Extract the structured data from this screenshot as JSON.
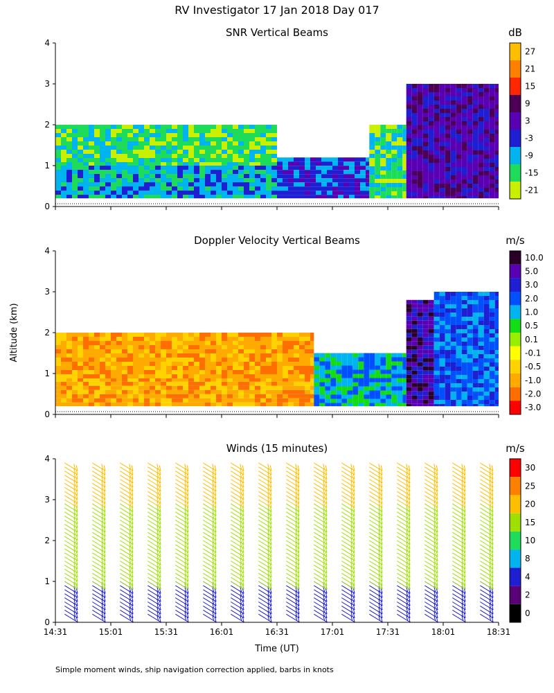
{
  "figure": {
    "title": "RV Investigator  17 Jan 2018 Day 017",
    "ylabel": "Altitude (km)",
    "xlabel": "Time (UT)",
    "footnote": "Simple moment winds, ship navigation correction applied, barbs in knots"
  },
  "chart_data": [
    {
      "type": "heatmap",
      "title": "SNR Vertical Beams",
      "units": "dB",
      "x_ticks": [
        "14:31",
        "15:01",
        "15:31",
        "16:01",
        "16:31",
        "17:01",
        "17:31",
        "18:01",
        "18:31"
      ],
      "y_ticks": [
        "0",
        "1",
        "2",
        "3",
        "4"
      ],
      "ylim": [
        0,
        4
      ],
      "xlim": [
        "14:31",
        "18:31"
      ],
      "colorbar_labels": [
        "27",
        "21",
        "15",
        "9",
        "3",
        "-3",
        "-9",
        "-15",
        "-21"
      ],
      "colorbar_colors": [
        "#ffbf00",
        "#ff7f00",
        "#ff2600",
        "#4b0055",
        "#5a00b4",
        "#1e1ed2",
        "#00b4f0",
        "#1edc5a",
        "#c8f000"
      ],
      "regions": [
        {
          "time_range": [
            "14:31",
            "16:31"
          ],
          "altitude_range": [
            0.2,
            1.0
          ],
          "snr_db_approx": -9
        },
        {
          "time_range": [
            "14:31",
            "16:31"
          ],
          "altitude_range": [
            1.0,
            2.0
          ],
          "snr_db_approx": -18
        },
        {
          "time_range": [
            "16:31",
            "17:21"
          ],
          "altitude_range": [
            0.2,
            1.2
          ],
          "snr_db_approx": -3
        },
        {
          "time_range": [
            "17:21",
            "17:41"
          ],
          "altitude_range": [
            0.2,
            2.0
          ],
          "snr_db_approx": -18
        },
        {
          "time_range": [
            "17:41",
            "18:31"
          ],
          "altitude_range": [
            0.2,
            3.0
          ],
          "snr_db_approx": 3
        }
      ]
    },
    {
      "type": "heatmap",
      "title": "Doppler Velocity Vertical Beams",
      "units": "m/s",
      "x_ticks": [
        "14:31",
        "15:01",
        "15:31",
        "16:01",
        "16:31",
        "17:01",
        "17:31",
        "18:01",
        "18:31"
      ],
      "y_ticks": [
        "0",
        "1",
        "2",
        "3",
        "4"
      ],
      "ylim": [
        0,
        4
      ],
      "xlim": [
        "14:31",
        "18:31"
      ],
      "colorbar_labels": [
        "10.0",
        "5.0",
        "3.0",
        "2.0",
        "1.0",
        "0.5",
        "0.1",
        "-0.1",
        "-0.5",
        "-1.0",
        "-2.0",
        "-3.0"
      ],
      "colorbar_colors": [
        "#280028",
        "#5a00b4",
        "#1e1ed2",
        "#0050ff",
        "#00b4f0",
        "#14dc14",
        "#96f000",
        "#ffff00",
        "#ffd200",
        "#ffaa00",
        "#ff6e00",
        "#ff0000"
      ],
      "regions": [
        {
          "time_range": [
            "14:31",
            "16:51"
          ],
          "altitude_range": [
            0.2,
            0.8
          ],
          "velocity_ms_approx": -1.5
        },
        {
          "time_range": [
            "14:31",
            "16:51"
          ],
          "altitude_range": [
            0.8,
            2.0
          ],
          "velocity_ms_approx": -0.8
        },
        {
          "time_range": [
            "16:51",
            "17:41"
          ],
          "altitude_range": [
            0.2,
            1.5
          ],
          "velocity_ms_approx": 1.0
        },
        {
          "time_range": [
            "17:41",
            "17:56"
          ],
          "altitude_range": [
            0.2,
            2.8
          ],
          "velocity_ms_approx": 4.0
        },
        {
          "time_range": [
            "17:56",
            "18:31"
          ],
          "altitude_range": [
            0.2,
            3.0
          ],
          "velocity_ms_approx": 1.5
        }
      ]
    },
    {
      "type": "scatter",
      "title": "Winds (15 minutes)",
      "units": "m/s",
      "x_ticks": [
        "14:31",
        "15:01",
        "15:31",
        "16:01",
        "16:31",
        "17:01",
        "17:31",
        "18:01",
        "18:31"
      ],
      "y_ticks": [
        "0",
        "1",
        "2",
        "3",
        "4"
      ],
      "ylim": [
        0,
        4
      ],
      "xlim": [
        "14:31",
        "18:31"
      ],
      "colorbar_labels": [
        "30",
        "25",
        "20",
        "15",
        "10",
        "8",
        "4",
        "2",
        "0"
      ],
      "colorbar_colors": [
        "#ff0000",
        "#ff7f00",
        "#ffbf00",
        "#a0e000",
        "#1edc5a",
        "#00b4f0",
        "#1e1ed2",
        "#5a0078",
        "#000000"
      ],
      "profile_times": [
        "14:36",
        "14:51",
        "15:06",
        "15:21",
        "15:36",
        "15:51",
        "16:06",
        "16:21",
        "16:36",
        "16:51",
        "17:06",
        "17:21",
        "17:36",
        "17:51",
        "18:06",
        "18:21"
      ],
      "profile_levels_km": [
        {
          "altitude_range": [
            0.2,
            1.0
          ],
          "speed_ms_approx": 5
        },
        {
          "altitude_range": [
            1.0,
            2.0
          ],
          "speed_ms_approx": 13
        },
        {
          "altitude_range": [
            2.0,
            3.0
          ],
          "speed_ms_approx": 16
        },
        {
          "altitude_range": [
            3.0,
            4.0
          ],
          "speed_ms_approx": 22
        }
      ]
    }
  ]
}
